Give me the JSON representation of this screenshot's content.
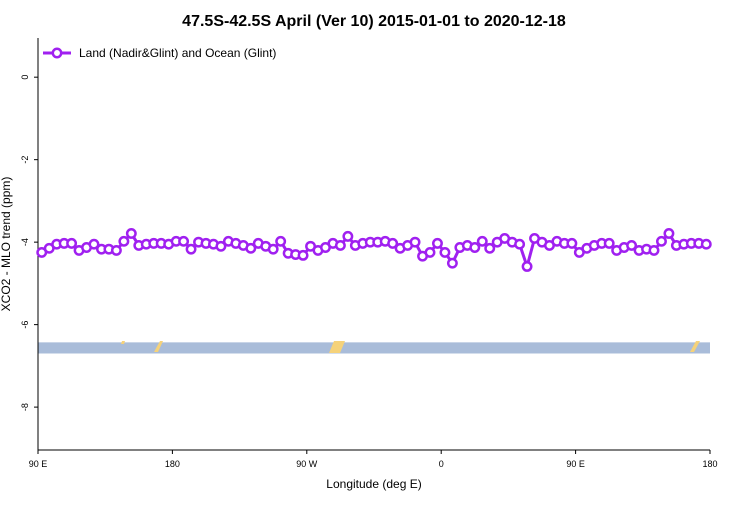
{
  "chart_data": {
    "type": "line",
    "title": "47.5S-42.5S April (Ver 10)   2015-01-01 to 2020-12-18",
    "xlabel": "Longitude (deg E)",
    "ylabel": "XCO2 - MLO trend (ppm)",
    "x": [
      92.5,
      97.5,
      102.5,
      107.5,
      112.5,
      117.5,
      122.5,
      127.5,
      132.5,
      137.5,
      142.5,
      147.5,
      152.5,
      157.5,
      162.5,
      167.5,
      172.5,
      177.5,
      182.5,
      187.5,
      192.5,
      197.5,
      202.5,
      207.5,
      212.5,
      217.5,
      222.5,
      227.5,
      232.5,
      237.5,
      242.5,
      247.5,
      252.5,
      257.5,
      262.5,
      267.5,
      272.5,
      277.5,
      282.5,
      287.5,
      292.5,
      297.5,
      302.5,
      307.5,
      312.5,
      317.5,
      322.5,
      327.5,
      332.5,
      337.5,
      342.5,
      347.5,
      352.5,
      357.5,
      362.5,
      367.5,
      372.5,
      377.5,
      382.5,
      387.5,
      392.5,
      397.5,
      402.5,
      407.5,
      412.5,
      417.5,
      422.5,
      427.5,
      432.5,
      437.5,
      442.5,
      447.5,
      452.5,
      457.5,
      462.5,
      467.5,
      472.5,
      477.5,
      482.5,
      487.5,
      492.5,
      497.5,
      502.5,
      507.5,
      512.5,
      517.5,
      522.5,
      527.5,
      532.5,
      537.5
    ],
    "series": [
      {
        "name": "Land (Nadir&Glint) and Ocean (Glint)",
        "color": "#a020f0",
        "values": [
          -4.25,
          -4.15,
          -4.05,
          -4.03,
          -4.03,
          -4.2,
          -4.13,
          -4.05,
          -4.17,
          -4.17,
          -4.2,
          -3.98,
          -3.79,
          -4.08,
          -4.05,
          -4.03,
          -4.03,
          -4.05,
          -3.98,
          -3.98,
          -4.17,
          -4.0,
          -4.03,
          -4.05,
          -4.1,
          -3.98,
          -4.03,
          -4.08,
          -4.15,
          -4.03,
          -4.1,
          -4.17,
          -3.98,
          -4.27,
          -4.3,
          -4.32,
          -4.1,
          -4.2,
          -4.13,
          -4.03,
          -4.08,
          -3.86,
          -4.08,
          -4.03,
          -4.0,
          -4.0,
          -3.98,
          -4.03,
          -4.15,
          -4.08,
          -4.0,
          -4.34,
          -4.25,
          -4.03,
          -4.25,
          -4.51,
          -4.13,
          -4.08,
          -4.13,
          -3.98,
          -4.15,
          -4.0,
          -3.91,
          -4.0,
          -4.05,
          -4.59,
          -3.91,
          -4.0,
          -4.08,
          -3.98,
          -4.03,
          -4.03,
          -4.25,
          -4.15,
          -4.08,
          -4.03,
          -4.03,
          -4.2,
          -4.13,
          -4.08,
          -4.2,
          -4.17,
          -4.2,
          -3.98,
          -3.79,
          -4.08,
          -4.05,
          -4.03,
          -4.03,
          -4.05
        ]
      }
    ],
    "band_ylim": [
      -6.7,
      -6.43
    ],
    "band_color": "#a9bcd9",
    "xlim": [
      90,
      540
    ],
    "xticks": [
      {
        "value": 90,
        "label": "90 E"
      },
      180,
      {
        "value": 270,
        "label": "90 W"
      },
      {
        "value": 360,
        "label": "0"
      },
      {
        "value": 450,
        "label": "90 E"
      },
      {
        "value": 540,
        "label": "180"
      }
    ],
    "ylim": [
      -9.04,
      0.95
    ],
    "yticks": [
      0,
      -2,
      -4,
      -6,
      -8
    ],
    "legend": "top-left"
  }
}
